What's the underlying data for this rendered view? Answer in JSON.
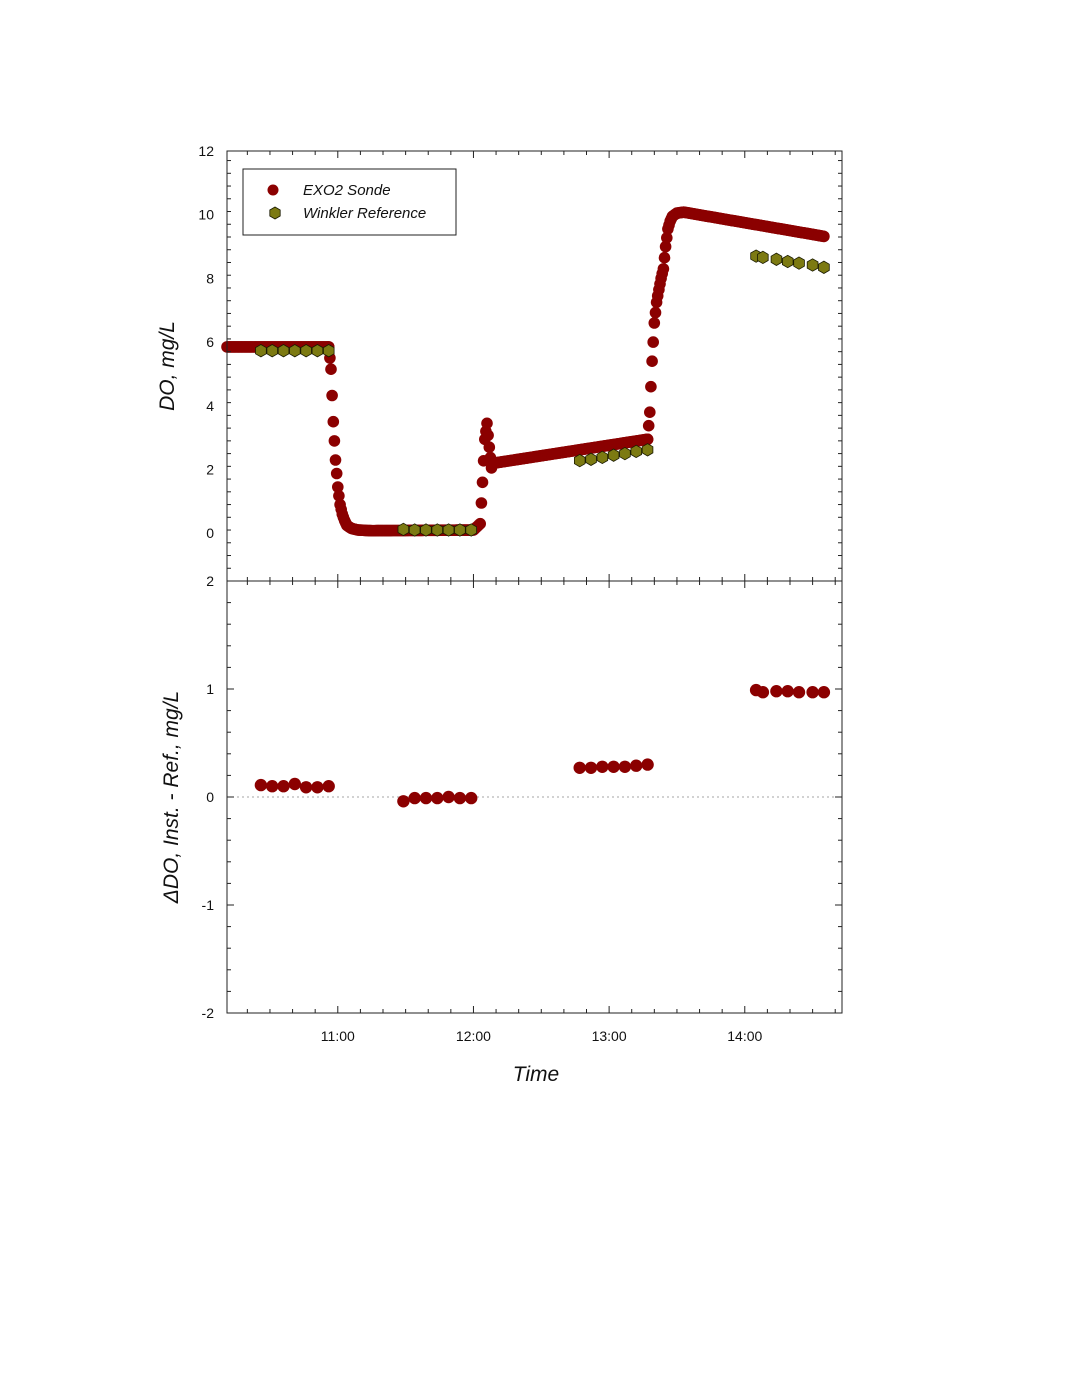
{
  "chart_data": [
    {
      "type": "scatter",
      "panel": "top",
      "title": "",
      "xlabel": "",
      "ylabel": "DO, mg/L",
      "ylim": [
        -1.5,
        12
      ],
      "yticks": [
        0,
        2,
        4,
        6,
        8,
        10,
        12
      ],
      "ytick_labels": [
        "0",
        "2",
        "4",
        "6",
        "8",
        "10",
        "12"
      ],
      "xlim": [
        "10:11",
        "14:43"
      ],
      "legend": {
        "placement": "top-left",
        "entries": [
          "EXO2 Sonde",
          "Winkler Reference"
        ]
      },
      "grid": false,
      "series": [
        {
          "name": "EXO2 Sonde",
          "color": "#8b0000",
          "marker": "circle",
          "segments": [
            [
              [
                "10:11",
                5.85
              ],
              [
                "10:56",
                5.85
              ]
            ],
            [
              [
                "10:56",
                5.85
              ],
              [
                "10:57",
                5.15
              ],
              [
                "10:58",
                3.5
              ],
              [
                "10:59",
                2.3
              ],
              [
                "11:00",
                1.45
              ],
              [
                "11:01",
                0.9
              ],
              [
                "11:02",
                0.6
              ],
              [
                "11:03",
                0.4
              ],
              [
                "11:04",
                0.25
              ],
              [
                "11:06",
                0.15
              ],
              [
                "11:09",
                0.1
              ],
              [
                "11:15",
                0.08
              ],
              [
                "12:00",
                0.1
              ],
              [
                "12:03",
                0.3
              ],
              [
                "12:04",
                1.6
              ],
              [
                "12:05",
                2.95
              ],
              [
                "12:06",
                3.45
              ],
              [
                "12:07",
                2.7
              ],
              [
                "12:08",
                2.05
              ]
            ],
            [
              [
                "12:09",
                2.2
              ],
              [
                "13:17",
                2.95
              ]
            ],
            [
              [
                "13:17",
                2.95
              ],
              [
                "13:18",
                3.8
              ],
              [
                "13:19",
                5.4
              ],
              [
                "13:20",
                6.6
              ],
              [
                "13:21",
                7.25
              ],
              [
                "13:22",
                7.65
              ],
              [
                "13:23",
                8.0
              ],
              [
                "13:24",
                8.3
              ],
              [
                "13:25",
                9.0
              ],
              [
                "13:26",
                9.55
              ],
              [
                "13:27",
                9.8
              ],
              [
                "13:28",
                9.95
              ],
              [
                "13:30",
                10.05
              ],
              [
                "13:33",
                10.08
              ]
            ],
            [
              [
                "13:33",
                10.08
              ],
              [
                "14:35",
                9.32
              ]
            ]
          ]
        },
        {
          "name": "Winkler Reference",
          "color": "#7c7a12",
          "marker": "hexagon",
          "points": [
            [
              "10:26",
              5.73
            ],
            [
              "10:31",
              5.73
            ],
            [
              "10:36",
              5.73
            ],
            [
              "10:41",
              5.73
            ],
            [
              "10:46",
              5.73
            ],
            [
              "10:51",
              5.73
            ],
            [
              "10:56",
              5.73
            ],
            [
              "11:29",
              0.12
            ],
            [
              "11:34",
              0.1
            ],
            [
              "11:39",
              0.1
            ],
            [
              "11:44",
              0.1
            ],
            [
              "11:49",
              0.1
            ],
            [
              "11:54",
              0.1
            ],
            [
              "11:59",
              0.1
            ],
            [
              "12:47",
              2.28
            ],
            [
              "12:52",
              2.32
            ],
            [
              "12:57",
              2.38
            ],
            [
              "13:02",
              2.45
            ],
            [
              "13:07",
              2.5
            ],
            [
              "13:12",
              2.57
            ],
            [
              "13:17",
              2.62
            ],
            [
              "14:05",
              8.7
            ],
            [
              "14:08",
              8.66
            ],
            [
              "14:14",
              8.6
            ],
            [
              "14:19",
              8.53
            ],
            [
              "14:24",
              8.48
            ],
            [
              "14:30",
              8.42
            ],
            [
              "14:35",
              8.35
            ]
          ]
        }
      ]
    },
    {
      "type": "scatter",
      "panel": "bottom",
      "title": "",
      "xlabel": "Time",
      "ylabel": "ΔDO, Inst. - Ref., mg/L",
      "ylim": [
        -2,
        2
      ],
      "yticks": [
        -2,
        -1,
        0,
        1,
        2
      ],
      "ytick_labels": [
        "-2",
        "-1",
        "0",
        "1",
        "2"
      ],
      "xlim": [
        "10:11",
        "14:43"
      ],
      "xticks": [
        "11:00",
        "12:00",
        "13:00",
        "14:00"
      ],
      "xtick_labels": [
        "11:00",
        "12:00",
        "13:00",
        "14:00"
      ],
      "reference_line": 0,
      "grid": false,
      "series": [
        {
          "color": "#8b0000",
          "marker": "circle",
          "points": [
            [
              "10:26",
              0.11
            ],
            [
              "10:31",
              0.1
            ],
            [
              "10:36",
              0.1
            ],
            [
              "10:41",
              0.12
            ],
            [
              "10:46",
              0.09
            ],
            [
              "10:51",
              0.09
            ],
            [
              "10:56",
              0.1
            ],
            [
              "11:29",
              -0.04
            ],
            [
              "11:34",
              -0.01
            ],
            [
              "11:39",
              -0.01
            ],
            [
              "11:44",
              -0.01
            ],
            [
              "11:49",
              0.0
            ],
            [
              "11:54",
              -0.01
            ],
            [
              "11:59",
              -0.01
            ],
            [
              "12:47",
              0.27
            ],
            [
              "12:52",
              0.27
            ],
            [
              "12:57",
              0.28
            ],
            [
              "13:02",
              0.28
            ],
            [
              "13:07",
              0.28
            ],
            [
              "13:12",
              0.29
            ],
            [
              "13:17",
              0.3
            ],
            [
              "14:05",
              0.99
            ],
            [
              "14:08",
              0.97
            ],
            [
              "14:14",
              0.98
            ],
            [
              "14:19",
              0.98
            ],
            [
              "14:24",
              0.97
            ],
            [
              "14:30",
              0.97
            ],
            [
              "14:35",
              0.97
            ]
          ]
        }
      ]
    }
  ]
}
